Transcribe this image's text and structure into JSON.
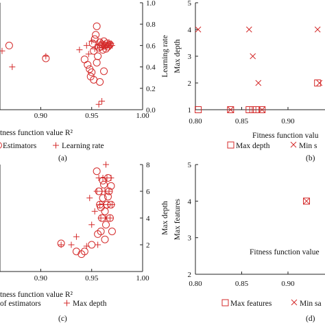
{
  "chart_data": [
    {
      "type": "scatter",
      "panel_label": "(a)",
      "xlabel": "tness function value R²",
      "ylabel_right": "Learning rate",
      "x_ticks": [
        "0.90",
        "0.95",
        "1.00"
      ],
      "y_ticks_right": [
        "0.0",
        "0.2",
        "0.4",
        "0.6",
        "0.8",
        "1.0"
      ],
      "xlim": [
        0.86,
        1.0
      ],
      "ylim": [
        0.0,
        1.0
      ],
      "grid": false,
      "legend": {
        "placement": "bottom",
        "entries": [
          "Estimators",
          "Learning rate"
        ],
        "markers": [
          "circle",
          "plus"
        ]
      },
      "series": [
        {
          "marker": "circle",
          "axis": "left",
          "points": [
            [
              0.869,
              0.6
            ],
            [
              0.905,
              0.48
            ],
            [
              0.943,
              0.47
            ],
            [
              0.946,
              0.42
            ],
            [
              0.948,
              0.38
            ],
            [
              0.95,
              0.35
            ],
            [
              0.951,
              0.62
            ],
            [
              0.952,
              0.55
            ],
            [
              0.953,
              0.66
            ],
            [
              0.954,
              0.7
            ],
            [
              0.955,
              0.78
            ],
            [
              0.956,
              0.5
            ],
            [
              0.957,
              0.58
            ],
            [
              0.958,
              0.63
            ],
            [
              0.959,
              0.59
            ],
            [
              0.96,
              0.61
            ],
            [
              0.961,
              0.56
            ],
            [
              0.962,
              0.64
            ],
            [
              0.963,
              0.6
            ],
            [
              0.964,
              0.57
            ],
            [
              0.965,
              0.62
            ],
            [
              0.966,
              0.59
            ],
            [
              0.968,
              0.61
            ],
            [
              0.952,
              0.28
            ],
            [
              0.958,
              0.26
            ],
            [
              0.962,
              0.36
            ],
            [
              0.955,
              0.44
            ],
            [
              0.949,
              0.31
            ]
          ]
        },
        {
          "marker": "plus",
          "axis": "right",
          "points": [
            [
              0.862,
              0.55
            ],
            [
              0.872,
              0.4
            ],
            [
              0.905,
              0.5
            ],
            [
              0.938,
              0.56
            ],
            [
              0.945,
              0.6
            ],
            [
              0.947,
              0.52
            ],
            [
              0.95,
              0.64
            ],
            [
              0.953,
              0.57
            ],
            [
              0.956,
              0.61
            ],
            [
              0.958,
              0.58
            ],
            [
              0.96,
              0.63
            ],
            [
              0.961,
              0.6
            ],
            [
              0.962,
              0.59
            ],
            [
              0.963,
              0.62
            ],
            [
              0.964,
              0.58
            ],
            [
              0.965,
              0.61
            ],
            [
              0.966,
              0.6
            ],
            [
              0.967,
              0.63
            ],
            [
              0.968,
              0.59
            ],
            [
              0.969,
              0.62
            ],
            [
              0.97,
              0.6
            ],
            [
              0.957,
              0.05
            ],
            [
              0.96,
              0.08
            ]
          ]
        }
      ]
    },
    {
      "type": "scatter",
      "panel_label": "(b)",
      "xlabel": "Fitness function valu",
      "ylabel": "Max depth",
      "x_ticks": [
        "0.80",
        "0.85",
        "0.90"
      ],
      "y_ticks": [
        "1",
        "2",
        "3",
        "4",
        "5"
      ],
      "xlim": [
        0.8,
        0.94
      ],
      "ylim": [
        1,
        5
      ],
      "grid": false,
      "legend": {
        "placement": "bottom",
        "entries": [
          "Max depth",
          "Min s"
        ],
        "markers": [
          "square",
          "x"
        ]
      },
      "series": [
        {
          "marker": "square",
          "points": [
            [
              0.803,
              1
            ],
            [
              0.838,
              1
            ],
            [
              0.858,
              1
            ],
            [
              0.862,
              1
            ],
            [
              0.866,
              1
            ],
            [
              0.872,
              1
            ],
            [
              0.932,
              2
            ]
          ]
        },
        {
          "marker": "x",
          "points": [
            [
              0.803,
              4
            ],
            [
              0.838,
              1
            ],
            [
              0.858,
              4
            ],
            [
              0.862,
              3
            ],
            [
              0.868,
              2
            ],
            [
              0.872,
              1
            ],
            [
              0.932,
              4
            ],
            [
              0.934,
              2
            ]
          ]
        }
      ]
    },
    {
      "type": "scatter",
      "panel_label": "(c)",
      "xlabel": "tness function value R²",
      "ylabel_right": "Max depth",
      "x_ticks": [
        "0.90",
        "0.95",
        "1.00"
      ],
      "y_ticks_right": [
        "2",
        "4",
        "6",
        "8"
      ],
      "xlim": [
        0.86,
        1.0
      ],
      "ylim": [
        0,
        8
      ],
      "grid": false,
      "legend": {
        "placement": "bottom",
        "entries": [
          "of estimators",
          "Max depth"
        ],
        "markers": [
          "circle",
          "plus"
        ]
      },
      "series": [
        {
          "marker": "circle",
          "axis": "left",
          "points": [
            [
              0.92,
              2.1
            ],
            [
              0.935,
              1.5
            ],
            [
              0.94,
              1.3
            ],
            [
              0.943,
              1.5
            ],
            [
              0.95,
              2.0
            ],
            [
              0.955,
              7.5
            ],
            [
              0.957,
              6.0
            ],
            [
              0.958,
              5.0
            ],
            [
              0.959,
              3.0
            ],
            [
              0.96,
              4.0
            ],
            [
              0.961,
              5.5
            ],
            [
              0.962,
              6.5
            ],
            [
              0.963,
              4.5
            ],
            [
              0.964,
              3.5
            ],
            [
              0.965,
              5.0
            ],
            [
              0.966,
              7.0
            ],
            [
              0.967,
              6.0
            ],
            [
              0.968,
              4.0
            ],
            [
              0.969,
              5.0
            ],
            [
              0.97,
              3.0
            ],
            [
              0.956,
              2.8
            ],
            [
              0.959,
              4.8
            ],
            [
              0.961,
              6.8
            ],
            [
              0.963,
              2.4
            ],
            [
              0.966,
              5.6
            ],
            [
              0.969,
              6.4
            ]
          ]
        },
        {
          "marker": "plus",
          "axis": "right",
          "points": [
            [
              0.92,
              2.0
            ],
            [
              0.93,
              2.0
            ],
            [
              0.935,
              2.6
            ],
            [
              0.945,
              1.9
            ],
            [
              0.948,
              5.5
            ],
            [
              0.95,
              3.5
            ],
            [
              0.953,
              4.5
            ],
            [
              0.955,
              6.0
            ],
            [
              0.957,
              7.0
            ],
            [
              0.958,
              5.0
            ],
            [
              0.959,
              4.0
            ],
            [
              0.96,
              6.0
            ],
            [
              0.961,
              7.0
            ],
            [
              0.962,
              5.0
            ],
            [
              0.963,
              6.0
            ],
            [
              0.964,
              4.0
            ],
            [
              0.965,
              7.0
            ],
            [
              0.966,
              5.0
            ],
            [
              0.967,
              6.0
            ],
            [
              0.968,
              4.0
            ],
            [
              0.969,
              7.0
            ],
            [
              0.97,
              5.0
            ],
            [
              0.956,
              2.0
            ],
            [
              0.964,
              8.0
            ]
          ]
        }
      ]
    },
    {
      "type": "scatter",
      "panel_label": "(d)",
      "xlabel": "Fitness function value",
      "ylabel": "Max features",
      "x_ticks": [
        "0.80",
        "0.85",
        "0.90"
      ],
      "y_ticks": [
        "2",
        "3",
        "4",
        "5"
      ],
      "xlim": [
        0.8,
        0.94
      ],
      "ylim": [
        2,
        5
      ],
      "grid": false,
      "legend": {
        "placement": "bottom",
        "entries": [
          "Max features",
          "Min sa"
        ],
        "markers": [
          "square",
          "x"
        ]
      },
      "series": [
        {
          "marker": "square",
          "points": [
            [
              0.92,
              4
            ]
          ]
        },
        {
          "marker": "x",
          "points": [
            [
              0.92,
              4
            ]
          ]
        }
      ]
    }
  ],
  "colors": {
    "marker": "#d42a2a",
    "axis": "#222222",
    "text": "#111111"
  }
}
